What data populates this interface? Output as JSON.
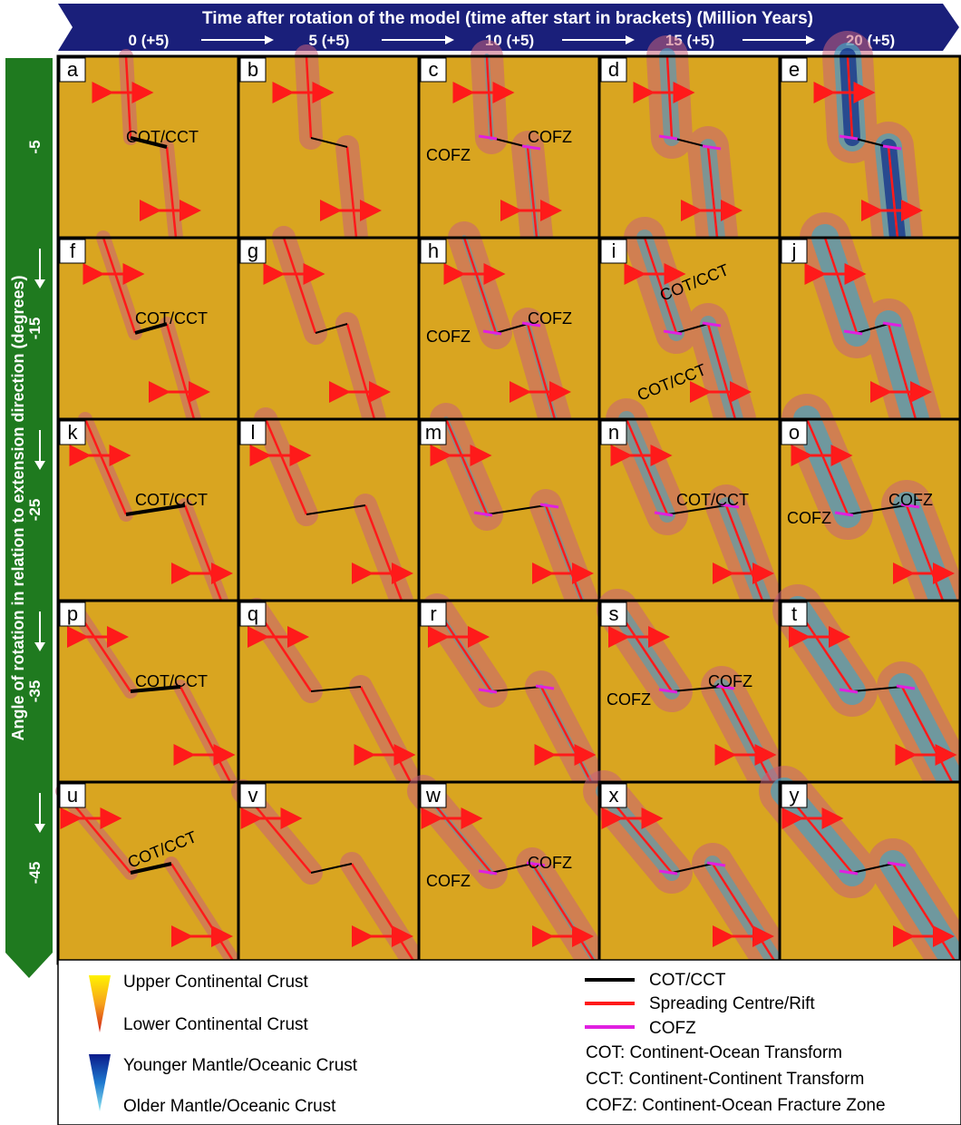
{
  "header": {
    "title": "Time after rotation of the model (time after start in brackets) (Million Years)",
    "times": [
      "0 (+5)",
      "5 (+5)",
      "10 (+5)",
      "15 (+5)",
      "20 (+5)"
    ],
    "banner_color": "#1a1f7a"
  },
  "side": {
    "title": "Angle of rotation in relation to extension direction (degrees)",
    "angles": [
      "-5",
      "-15",
      "-25",
      "-35",
      "-45"
    ],
    "banner_color": "#1f7a1f"
  },
  "panels": {
    "letters": [
      "a",
      "b",
      "c",
      "d",
      "e",
      "f",
      "g",
      "h",
      "i",
      "j",
      "k",
      "l",
      "m",
      "n",
      "o",
      "p",
      "q",
      "r",
      "s",
      "t",
      "u",
      "v",
      "w",
      "x",
      "y"
    ],
    "annotations": {
      "a": [
        "COT/CCT"
      ],
      "c": [
        "COFZ",
        "COFZ"
      ],
      "f": [
        "COT/CCT"
      ],
      "h": [
        "COFZ",
        "COFZ"
      ],
      "i": [
        "COT/CCT",
        "COT/CCT"
      ],
      "k": [
        "COT/CCT"
      ],
      "n": [
        "COT/CCT"
      ],
      "o": [
        "COFZ",
        "COFZ"
      ],
      "p": [
        "COT/CCT"
      ],
      "s": [
        "COFZ",
        "COFZ"
      ],
      "u": [
        "COT/CCT"
      ],
      "w": [
        "COFZ",
        "COFZ"
      ]
    }
  },
  "legend": {
    "upper_continental": "Upper Continental Crust",
    "lower_continental": "Lower Continental Crust",
    "younger_mantle": "Younger Mantle/Oceanic Crust",
    "older_mantle": "Older Mantle/Oceanic Crust",
    "cot_cct": "COT/CCT",
    "spreading": "Spreading Centre/Rift",
    "cofz": "COFZ",
    "cot_def": "COT: Continent-Ocean Transform",
    "cct_def": "CCT: Continent-Continent Transform",
    "cofz_def": "COFZ: Continent-Ocean Fracture Zone"
  },
  "colors": {
    "continental": "#d9a520",
    "rift_halo": "#c9607a",
    "oceanic": "#3aa6c8",
    "oceanic_dark": "#0a2a8a",
    "cot_line": "#000000",
    "spreading_line": "#ff1a1a",
    "cofz_line": "#e020e0",
    "arrow": "#ff1a1a"
  }
}
